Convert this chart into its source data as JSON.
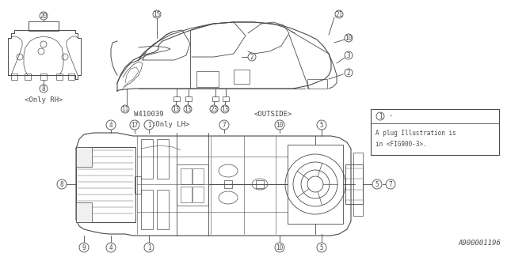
{
  "part_number": "A900001196",
  "background_color": "#ffffff",
  "line_color": "#4a4a4a",
  "text_color": "#4a4a4a",
  "legend_line1": "A plug Illustration is",
  "legend_line2": "in <FIG900-3>.",
  "label_only_rh": "<Only RH>",
  "label_only_lh": "<Only LH>",
  "label_outside": "<OUTSIDE>",
  "label_w410039": "W410039",
  "font_size_label": 6.5,
  "font_size_callout": 5.5,
  "font_size_partnum": 6.5
}
